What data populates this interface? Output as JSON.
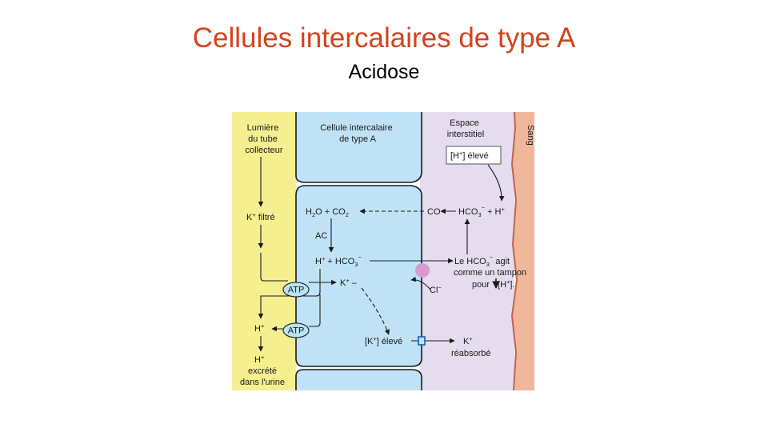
{
  "slide": {
    "title": "Cellules intercalaires de type A",
    "subtitle": "Acidose"
  },
  "colors": {
    "title": "#d3431c",
    "lumen": "#f6ef8f",
    "cell": "#bfe2f6",
    "interstitial": "#e6dcef",
    "blood": "#f0b79a",
    "atp": "#b9e3f0",
    "exchanger": "#d89ad0"
  },
  "diagram": {
    "compartments": {
      "lumen": [
        "Lumière",
        "du tube",
        "collecteur"
      ],
      "cell": [
        "Cellule intercalaire",
        "de type A"
      ],
      "interstitial": [
        "Espace",
        "interstitiel"
      ],
      "blood": "Sang"
    },
    "labels": {
      "h_eleve": {
        "pre": "[H",
        "sup": "+",
        "post": "] élevé"
      },
      "co": "CO",
      "hco3_h": {
        "a": "HCO",
        "sub": "3",
        "sup1": "−",
        "b": " + H",
        "sup2": "+"
      },
      "h2o_co2": {
        "a": "H",
        "sub1": "2",
        "b": "O + CO",
        "sub2": "2"
      },
      "ac": "AC",
      "k_filtre": {
        "a": "K",
        "sup": "+",
        "b": " filtré"
      },
      "h_hco3": {
        "a": "H",
        "sup1": "+",
        "b": " + HCO",
        "sub": "3",
        "sup2": "−"
      },
      "tampon1": {
        "a": "Le HCO",
        "sub": "3",
        "sup": "−",
        "b": " agit"
      },
      "tampon2": "comme un tampon",
      "tampon3": {
        "a": "pour",
        "b": "[H",
        "sup": "+",
        "c": "]."
      },
      "cl": {
        "a": "Cl",
        "sup": "−"
      },
      "k_cell": {
        "a": "K",
        "sup": "+",
        "b": " –"
      },
      "atp": "ATP",
      "h_lumen": {
        "a": "H",
        "sup": "+"
      },
      "k_eleve": {
        "a": "[K",
        "sup": "+",
        "b": "] élevé"
      },
      "k_reab": {
        "a": "K",
        "sup": "+"
      },
      "reabsorbe": "réabsorbé",
      "h_excrete": {
        "a": "H",
        "sup": "+"
      },
      "excrete": "excrété",
      "urine": "dans l'urine"
    }
  }
}
